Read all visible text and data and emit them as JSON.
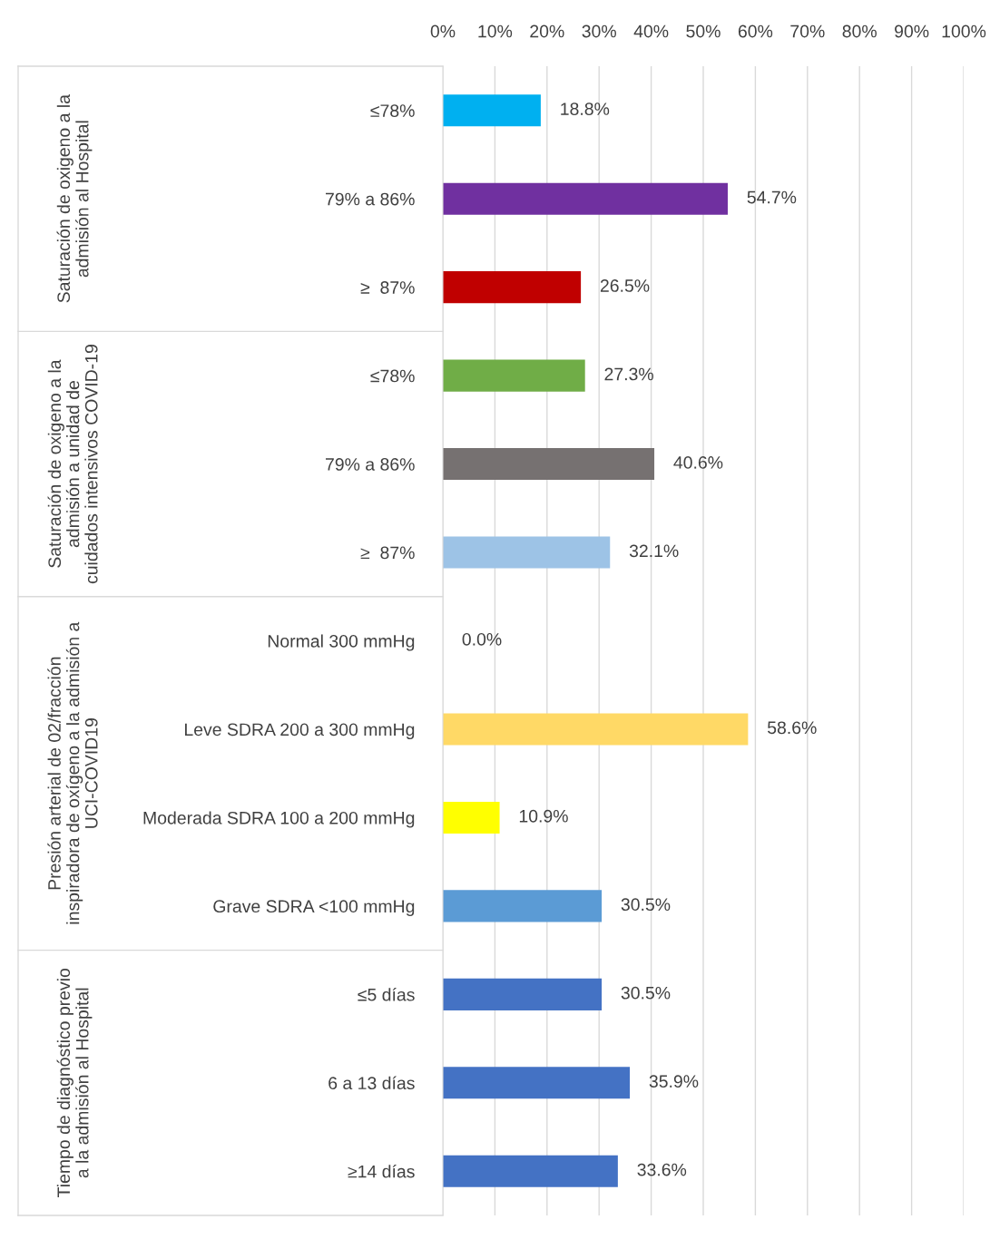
{
  "chart_data": {
    "type": "bar",
    "orientation": "horizontal",
    "categories": [
      "≤78%",
      "79% a 86%",
      "≥  87%",
      "≤78%",
      "79% a 86%",
      "≥  87%",
      "Normal 300 mmHg",
      "Leve SDRA 200 a 300 mmHg",
      "Moderada SDRA 100 a 200 mmHg",
      "Grave SDRA <100 mmHg",
      "≤5 días",
      "6 a 13 días",
      "≥14 días"
    ],
    "values": [
      18.8,
      54.7,
      26.5,
      27.3,
      40.6,
      32.1,
      0.0,
      58.6,
      10.9,
      30.5,
      30.5,
      35.9,
      33.6
    ],
    "value_labels": [
      "18.8%",
      "54.7%",
      "26.5%",
      "27.3%",
      "40.6%",
      "32.1%",
      "0.0%",
      "58.6%",
      "10.9%",
      "30.5%",
      "30.5%",
      "35.9%",
      "33.6%"
    ],
    "colors": [
      "#00b0f0",
      "#7030a0",
      "#c00000",
      "#70ad47",
      "#767171",
      "#9dc3e6",
      "#4472c4",
      "#ffd966",
      "#ffff00",
      "#5b9bd5",
      "#4472c4",
      "#4472c4",
      "#4472c4"
    ],
    "xlim": [
      0,
      100
    ],
    "xticks": [
      {
        "value": 0,
        "label": "0%"
      },
      {
        "value": 10,
        "label": "10%"
      },
      {
        "value": 20,
        "label": "20%"
      },
      {
        "value": 30,
        "label": "30%"
      },
      {
        "value": 40,
        "label": "40%"
      },
      {
        "value": 50,
        "label": "50%"
      },
      {
        "value": 60,
        "label": "60%"
      },
      {
        "value": 70,
        "label": "70%"
      },
      {
        "value": 80,
        "label": "80%"
      },
      {
        "value": 90,
        "label": "90%"
      },
      {
        "value": 100,
        "label": "100%"
      }
    ],
    "grid": "x",
    "annotations": [
      "Saturación de oxigeno a la\nadmisión al Hospital",
      "Saturación de oxigeno a la\nadmisión a unidad de\ncuidados intensivos COVID-19",
      "Presión arterial de 02/fracción\ninspiradora de oxígeno a la admisión a\nUCI-COVID19",
      "Tiempo de diagnóstico previo\na la admisión al Hospital"
    ]
  }
}
